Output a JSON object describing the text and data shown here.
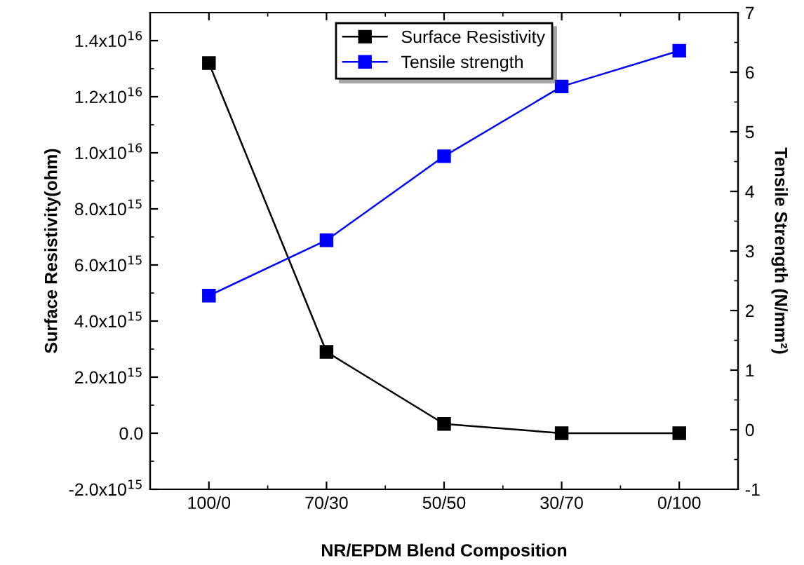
{
  "chart_data": {
    "type": "line",
    "xlabel": "NR/EPDM Blend Composition",
    "ylabel": "Surface Resistivity(ohm)",
    "y2label": "Tensile Strength (N/mm²)",
    "categories": [
      "100/0",
      "70/30",
      "50/50",
      "30/70",
      "0/100"
    ],
    "series": [
      {
        "name": "Surface Resistivity",
        "color": "#000000",
        "values": [
          1.32e+16,
          2900000000000000.0,
          330000000000000.0,
          0,
          0
        ]
      },
      {
        "name": "Tensile strength",
        "color": "#0000ff",
        "axis": "y2",
        "values": [
          2.25,
          3.18,
          4.59,
          5.76,
          6.36
        ]
      }
    ],
    "ylim": [
      -2000000000000000.0,
      1.5e+16
    ],
    "yticks": [
      {
        "value": -2000000000000000.0,
        "label": "-2.0x10$^{15}$"
      },
      {
        "value": 0,
        "label": "0.0"
      },
      {
        "value": 2000000000000000.0,
        "label": "2.0x10$^{15}$"
      },
      {
        "value": 4000000000000000.0,
        "label": "4.0x10$^{15}$"
      },
      {
        "value": 6000000000000000.0,
        "label": "6.0x10$^{15}$"
      },
      {
        "value": 8000000000000000.0,
        "label": "8.0x10$^{15}$"
      },
      {
        "value": 1e+16,
        "label": "1.0x10$^{16}$"
      },
      {
        "value": 1.2e+16,
        "label": "1.2x10$^{16}$"
      },
      {
        "value": 1.4e+16,
        "label": "1.4x10$^{16}$"
      }
    ],
    "y2lim": [
      -1,
      7
    ],
    "y2ticks": [
      -1,
      0,
      1,
      2,
      3,
      4,
      5,
      6,
      7
    ],
    "marker": "square",
    "grid": false,
    "legend": "top"
  }
}
